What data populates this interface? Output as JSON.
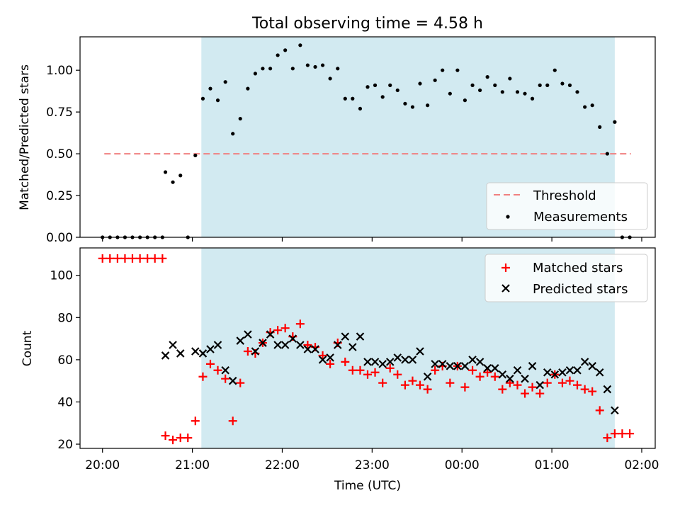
{
  "chart_data": [
    {
      "type": "scatter",
      "title": "Total observing time = 4.58 h",
      "ylabel": "Matched/Predicted stars",
      "xlabel": "",
      "x_unit": "hours after 20:00 UTC",
      "xlim": [
        -0.25,
        6.15
      ],
      "ylim": [
        0,
        1.2
      ],
      "yticks": [
        0.0,
        0.25,
        0.5,
        0.75,
        1.0
      ],
      "ytick_labels": [
        "0.00",
        "0.25",
        "0.50",
        "0.75",
        "1.00"
      ],
      "shaded_interval": [
        1.1,
        5.7
      ],
      "shade_color": "#add8e6",
      "threshold": {
        "name": "Threshold",
        "value": 0.5,
        "x_range": [
          0.02,
          5.88
        ],
        "color": "#f08080"
      },
      "legend": {
        "position": "lower right",
        "entries": [
          "Threshold",
          "Measurements"
        ]
      },
      "series": [
        {
          "name": "Measurements",
          "marker": "dot",
          "color": "#000000",
          "x": [
            0.0,
            0.083,
            0.167,
            0.25,
            0.333,
            0.417,
            0.5,
            0.583,
            0.667,
            0.7,
            0.783,
            0.867,
            0.95,
            1.033,
            1.117,
            1.2,
            1.283,
            1.367,
            1.45,
            1.533,
            1.617,
            1.7,
            1.783,
            1.867,
            1.95,
            2.033,
            2.117,
            2.2,
            2.283,
            2.367,
            2.45,
            2.533,
            2.617,
            2.7,
            2.783,
            2.867,
            2.95,
            3.033,
            3.117,
            3.2,
            3.283,
            3.367,
            3.45,
            3.533,
            3.617,
            3.7,
            3.783,
            3.867,
            3.95,
            4.033,
            4.117,
            4.2,
            4.283,
            4.367,
            4.45,
            4.533,
            4.617,
            4.7,
            4.783,
            4.867,
            4.95,
            5.033,
            5.117,
            5.2,
            5.283,
            5.367,
            5.45,
            5.533,
            5.617,
            5.7,
            5.783,
            5.867
          ],
          "y": [
            0,
            0,
            0,
            0,
            0,
            0,
            0,
            0,
            0,
            0.39,
            0.33,
            0.37,
            0,
            0.49,
            0.83,
            0.89,
            0.82,
            0.93,
            0.62,
            0.71,
            0.89,
            0.98,
            1.01,
            1.01,
            1.09,
            1.12,
            1.01,
            1.15,
            1.03,
            1.02,
            1.03,
            0.95,
            1.01,
            0.83,
            0.83,
            0.77,
            0.9,
            0.91,
            0.84,
            0.91,
            0.88,
            0.8,
            0.78,
            0.92,
            0.79,
            0.94,
            1.0,
            0.86,
            1.0,
            0.82,
            0.91,
            0.88,
            0.96,
            0.91,
            0.87,
            0.95,
            0.87,
            0.86,
            0.83,
            0.91,
            0.91,
            1.0,
            0.92,
            0.91,
            0.87,
            0.78,
            0.79,
            0.66,
            0.5,
            0.69,
            0,
            0
          ]
        }
      ]
    },
    {
      "type": "scatter",
      "title": "",
      "ylabel": "Count",
      "xlabel": "Time (UTC)",
      "x_unit": "hours after 20:00 UTC",
      "xlim": [
        -0.25,
        6.15
      ],
      "ylim": [
        18,
        113
      ],
      "xticks": [
        0,
        1,
        2,
        3,
        4,
        5,
        6
      ],
      "xtick_labels": [
        "20:00",
        "21:00",
        "22:00",
        "23:00",
        "00:00",
        "01:00",
        "02:00"
      ],
      "yticks": [
        20,
        40,
        60,
        80,
        100
      ],
      "ytick_labels": [
        "20",
        "40",
        "60",
        "80",
        "100"
      ],
      "shaded_interval": [
        1.1,
        5.7
      ],
      "shade_color": "#add8e6",
      "legend": {
        "position": "upper right",
        "entries": [
          "Matched stars",
          "Predicted stars"
        ]
      },
      "series": [
        {
          "name": "Matched stars",
          "marker": "plus",
          "color": "#ff0000",
          "x": [
            0.0,
            0.083,
            0.167,
            0.25,
            0.333,
            0.417,
            0.5,
            0.583,
            0.667,
            0.7,
            0.783,
            0.867,
            0.95,
            1.033,
            1.117,
            1.2,
            1.283,
            1.367,
            1.45,
            1.533,
            1.617,
            1.7,
            1.783,
            1.867,
            1.95,
            2.033,
            2.117,
            2.2,
            2.283,
            2.367,
            2.45,
            2.533,
            2.617,
            2.7,
            2.783,
            2.867,
            2.95,
            3.033,
            3.117,
            3.2,
            3.283,
            3.367,
            3.45,
            3.533,
            3.617,
            3.7,
            3.783,
            3.867,
            3.95,
            4.033,
            4.117,
            4.2,
            4.283,
            4.367,
            4.45,
            4.533,
            4.617,
            4.7,
            4.783,
            4.867,
            4.95,
            5.033,
            5.117,
            5.2,
            5.283,
            5.367,
            5.45,
            5.533,
            5.617,
            5.7,
            5.783,
            5.867
          ],
          "y": [
            108,
            108,
            108,
            108,
            108,
            108,
            108,
            108,
            108,
            24,
            22,
            23,
            23,
            31,
            52,
            58,
            55,
            51,
            31,
            49,
            64,
            63,
            68,
            73,
            74,
            75,
            71,
            77,
            67,
            66,
            62,
            58,
            68,
            59,
            55,
            55,
            53,
            54,
            49,
            56,
            53,
            48,
            50,
            48,
            46,
            55,
            57,
            49,
            57,
            47,
            55,
            52,
            54,
            52,
            46,
            49,
            48,
            44,
            47,
            44,
            49,
            53,
            49,
            50,
            48,
            46,
            45,
            36,
            23,
            25,
            25,
            25
          ]
        },
        {
          "name": "Predicted stars",
          "marker": "x",
          "color": "#000000",
          "x": [
            0.7,
            0.783,
            0.867,
            1.033,
            1.117,
            1.2,
            1.283,
            1.367,
            1.45,
            1.533,
            1.617,
            1.7,
            1.783,
            1.867,
            1.95,
            2.033,
            2.117,
            2.2,
            2.283,
            2.367,
            2.45,
            2.533,
            2.617,
            2.7,
            2.783,
            2.867,
            2.95,
            3.033,
            3.117,
            3.2,
            3.283,
            3.367,
            3.45,
            3.533,
            3.617,
            3.7,
            3.783,
            3.867,
            3.95,
            4.033,
            4.117,
            4.2,
            4.283,
            4.367,
            4.45,
            4.533,
            4.617,
            4.7,
            4.783,
            4.867,
            4.95,
            5.033,
            5.117,
            5.2,
            5.283,
            5.367,
            5.45,
            5.533,
            5.617,
            5.7
          ],
          "y": [
            62,
            67,
            63,
            64,
            63,
            65,
            67,
            55,
            50,
            69,
            72,
            64,
            68,
            72,
            67,
            67,
            70,
            67,
            65,
            65,
            60,
            61,
            67,
            71,
            66,
            71,
            59,
            59,
            58,
            59,
            61,
            60,
            60,
            64,
            52,
            58,
            58,
            57,
            57,
            57,
            60,
            59,
            56,
            56,
            53,
            51,
            55,
            51,
            57,
            48,
            54,
            53,
            54,
            55,
            55,
            59,
            57,
            54,
            46,
            36
          ]
        }
      ]
    }
  ]
}
